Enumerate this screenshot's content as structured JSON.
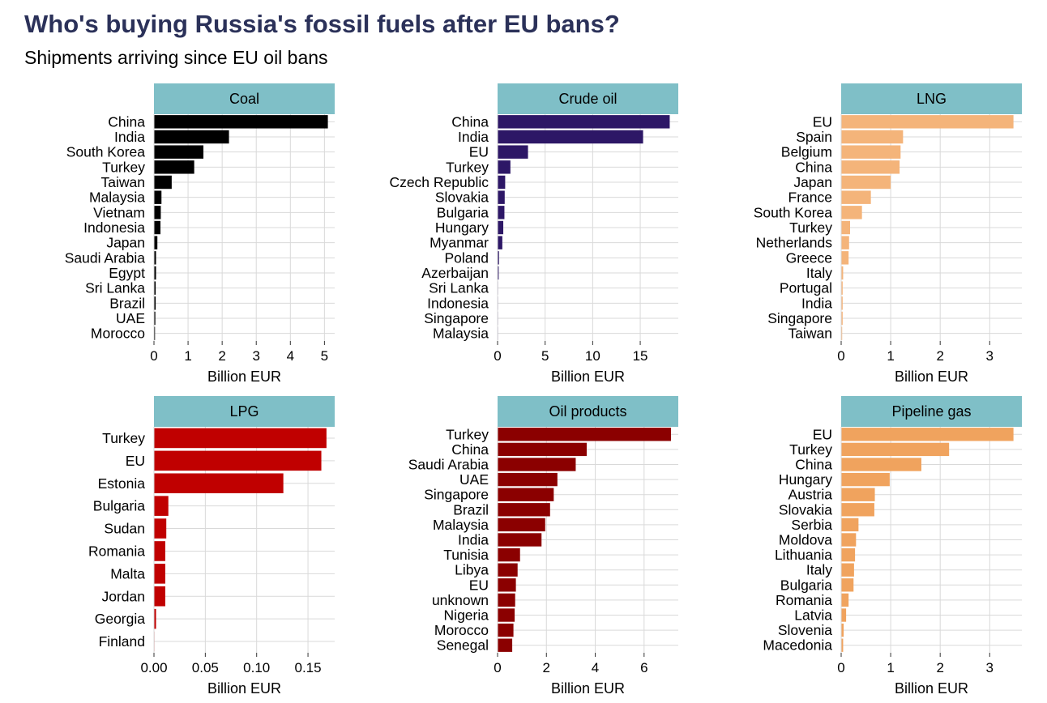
{
  "header": {
    "title": "Who's buying Russia's fossil fuels after EU bans?",
    "subtitle": "Shipments arriving since EU oil bans"
  },
  "colors": {
    "strip": "#7fbfc7",
    "grid": "#d9d9d9",
    "title": "#2b3159"
  },
  "chart_data": [
    {
      "type": "bar",
      "orientation": "horizontal",
      "title": "Coal",
      "xlabel": "Billion EUR",
      "xlim": [
        0,
        5.3
      ],
      "xticks": [
        0,
        1,
        2,
        3,
        4,
        5
      ],
      "xtick_labels": [
        "0",
        "1",
        "2",
        "3",
        "4",
        "5"
      ],
      "color": "#000000",
      "categories": [
        "China",
        "India",
        "South Korea",
        "Turkey",
        "Taiwan",
        "Malaysia",
        "Vietnam",
        "Indonesia",
        "Japan",
        "Saudi Arabia",
        "Egypt",
        "Sri Lanka",
        "Brazil",
        "UAE",
        "Morocco"
      ],
      "values": [
        5.1,
        2.2,
        1.45,
        1.18,
        0.52,
        0.22,
        0.2,
        0.19,
        0.1,
        0.06,
        0.06,
        0.05,
        0.05,
        0.04,
        0.03
      ]
    },
    {
      "type": "bar",
      "orientation": "horizontal",
      "title": "Crude oil",
      "xlabel": "Billion EUR",
      "xlim": [
        0,
        19
      ],
      "xticks": [
        0,
        5,
        10,
        15
      ],
      "xtick_labels": [
        "0",
        "5",
        "10",
        "15"
      ],
      "color": "#2d1766",
      "categories": [
        "China",
        "India",
        "EU",
        "Turkey",
        "Czech Republic",
        "Slovakia",
        "Bulgaria",
        "Hungary",
        "Myanmar",
        "Poland",
        "Azerbaijan",
        "Sri Lanka",
        "Indonesia",
        "Singapore",
        "Malaysia"
      ],
      "values": [
        18.1,
        15.3,
        3.2,
        1.35,
        0.8,
        0.75,
        0.72,
        0.6,
        0.5,
        0.15,
        0.12,
        0.05,
        0.05,
        0.04,
        0.03
      ]
    },
    {
      "type": "bar",
      "orientation": "horizontal",
      "title": "LNG",
      "xlabel": "Billion EUR",
      "xlim": [
        0,
        3.65
      ],
      "xticks": [
        0,
        1,
        2,
        3
      ],
      "xtick_labels": [
        "0",
        "1",
        "2",
        "3"
      ],
      "color": "#f4b47a",
      "categories": [
        "EU",
        "Spain",
        "Belgium",
        "China",
        "Japan",
        "France",
        "South Korea",
        "Turkey",
        "Netherlands",
        "Greece",
        "Italy",
        "Portugal",
        "India",
        "Singapore",
        "Taiwan"
      ],
      "values": [
        3.48,
        1.25,
        1.2,
        1.18,
        1.0,
        0.6,
        0.42,
        0.18,
        0.16,
        0.15,
        0.04,
        0.03,
        0.03,
        0.03,
        0.02
      ]
    },
    {
      "type": "bar",
      "orientation": "horizontal",
      "title": "LPG",
      "xlabel": "Billion EUR",
      "xlim": [
        0,
        0.176
      ],
      "xticks": [
        0,
        0.05,
        0.1,
        0.15
      ],
      "xtick_labels": [
        "0.00",
        "0.05",
        "0.10",
        "0.15"
      ],
      "color": "#c00000",
      "categories": [
        "Turkey",
        "EU",
        "Estonia",
        "Bulgaria",
        "Sudan",
        "Romania",
        "Malta",
        "Jordan",
        "Georgia",
        "Finland"
      ],
      "values": [
        0.168,
        0.163,
        0.126,
        0.014,
        0.012,
        0.011,
        0.011,
        0.011,
        0.002,
        0.0003
      ]
    },
    {
      "type": "bar",
      "orientation": "horizontal",
      "title": "Oil products",
      "xlabel": "Billion EUR",
      "xlim": [
        0,
        7.4
      ],
      "xticks": [
        0,
        2,
        4,
        6
      ],
      "xtick_labels": [
        "0",
        "2",
        "4",
        "6"
      ],
      "color": "#8b0000",
      "categories": [
        "Turkey",
        "China",
        "Saudi Arabia",
        "UAE",
        "Singapore",
        "Brazil",
        "Malaysia",
        "India",
        "Tunisia",
        "Libya",
        "EU",
        "unknown",
        "Nigeria",
        "Morocco",
        "Senegal"
      ],
      "values": [
        7.1,
        3.65,
        3.2,
        2.45,
        2.3,
        2.15,
        1.95,
        1.8,
        0.92,
        0.82,
        0.75,
        0.72,
        0.7,
        0.65,
        0.6
      ]
    },
    {
      "type": "bar",
      "orientation": "horizontal",
      "title": "Pipeline gas",
      "xlabel": "Billion EUR",
      "xlim": [
        0,
        3.65
      ],
      "xticks": [
        0,
        1,
        2,
        3
      ],
      "xtick_labels": [
        "0",
        "1",
        "2",
        "3"
      ],
      "color": "#f0a35e",
      "categories": [
        "EU",
        "Turkey",
        "China",
        "Hungary",
        "Austria",
        "Slovakia",
        "Serbia",
        "Moldova",
        "Lithuania",
        "Italy",
        "Bulgaria",
        "Romania",
        "Latvia",
        "Slovenia",
        "Macedonia"
      ],
      "values": [
        3.48,
        2.18,
        1.62,
        0.98,
        0.68,
        0.67,
        0.35,
        0.3,
        0.28,
        0.26,
        0.25,
        0.15,
        0.1,
        0.05,
        0.04
      ]
    }
  ]
}
